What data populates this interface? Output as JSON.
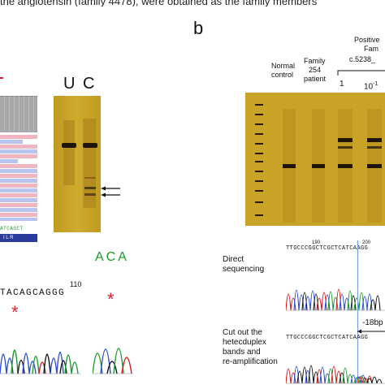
{
  "caption_fragment": "the angiotensin (family 4478), were obtained as the family members",
  "panel_b": {
    "letter": "b",
    "group_header_line1": "Positive",
    "group_header_line2": "Fam",
    "mutation_label": "c.5238_",
    "lanes": [
      {
        "line1": "Normal",
        "line2": "control"
      },
      {
        "line1": "Family",
        "line2": "254",
        "line3": "patient"
      }
    ],
    "dilutions": [
      "1",
      "10",
      "-1"
    ],
    "row_labels": {
      "direct_line1": "Direct",
      "direct_line2": "sequencing",
      "cut_line1": "Cut out the",
      "cut_line2": "hetecduplex",
      "cut_line3": "bands and",
      "cut_line4": "re-amplification"
    },
    "chrom_top": {
      "seq": "TTGCCCGGCTCGCTCATCAAGG",
      "tick1": "190",
      "tick2": "200"
    },
    "chrom_bottom": {
      "seq": "TTGCCCGGCTCGCTCATCAAGG",
      "tick": "-18bp"
    }
  },
  "panel_a": {
    "gel_labels": [
      "U",
      "C"
    ],
    "igv_seq": "ATCAGCT",
    "igv_aa": "I L R",
    "aca_label": "ACA",
    "chrom_seq": "TACAGCAGGG",
    "chrom_tick": "110",
    "asterisk": "*"
  },
  "colors": {
    "gel_bg": "#c9a326",
    "band": "#1e1505",
    "trace_blue": "#2a4fd1",
    "trace_green": "#1b9a2c",
    "trace_red": "#d11a1a",
    "trace_black": "#111111",
    "igv_gray": "#a8a8a8",
    "igv_pink": "#f0b5c0",
    "igv_blue": "#b8c4ee",
    "asterisk": "#e0202a"
  }
}
